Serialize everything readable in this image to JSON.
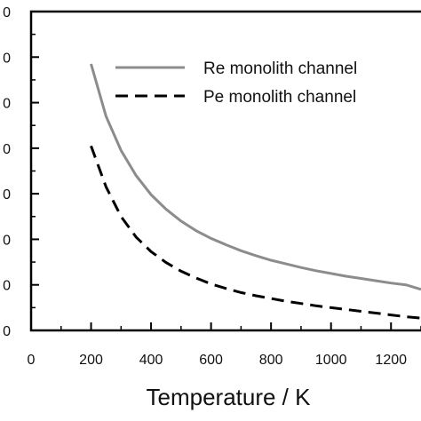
{
  "chart_data": {
    "type": "line",
    "title": "",
    "xlabel": "Temperature / K",
    "ylabel": "",
    "xlim": [
      0,
      1300
    ],
    "ylim": [
      0,
      7
    ],
    "grid": false,
    "legend_position": "top-right",
    "x_ticks": [
      0,
      200,
      400,
      600,
      800,
      1000,
      1200
    ],
    "y_tick_labels": [
      "0",
      "0",
      "0",
      "0",
      "0",
      "0",
      "0",
      "0"
    ],
    "series": [
      {
        "name": "Re monolith channel",
        "color": "#8c8c8c",
        "dash": "solid",
        "x": [
          200,
          250,
          300,
          350,
          400,
          450,
          500,
          550,
          600,
          650,
          700,
          750,
          800,
          850,
          900,
          950,
          1000,
          1050,
          1100,
          1150,
          1200,
          1250,
          1300
        ],
        "y": [
          5.85,
          4.7,
          3.95,
          3.4,
          2.98,
          2.66,
          2.4,
          2.19,
          2.02,
          1.88,
          1.75,
          1.64,
          1.54,
          1.46,
          1.38,
          1.31,
          1.25,
          1.19,
          1.14,
          1.09,
          1.04,
          1.0,
          0.9
        ]
      },
      {
        "name": "Pe monolith channel",
        "color": "#000000",
        "dash": "dashed",
        "x": [
          200,
          250,
          300,
          350,
          400,
          450,
          500,
          550,
          600,
          650,
          700,
          750,
          800,
          850,
          900,
          950,
          1000,
          1050,
          1100,
          1150,
          1200,
          1250,
          1300
        ],
        "y": [
          4.05,
          3.15,
          2.5,
          2.05,
          1.73,
          1.49,
          1.3,
          1.15,
          1.02,
          0.92,
          0.83,
          0.76,
          0.7,
          0.64,
          0.59,
          0.54,
          0.5,
          0.46,
          0.42,
          0.38,
          0.34,
          0.3,
          0.27
        ]
      }
    ]
  }
}
